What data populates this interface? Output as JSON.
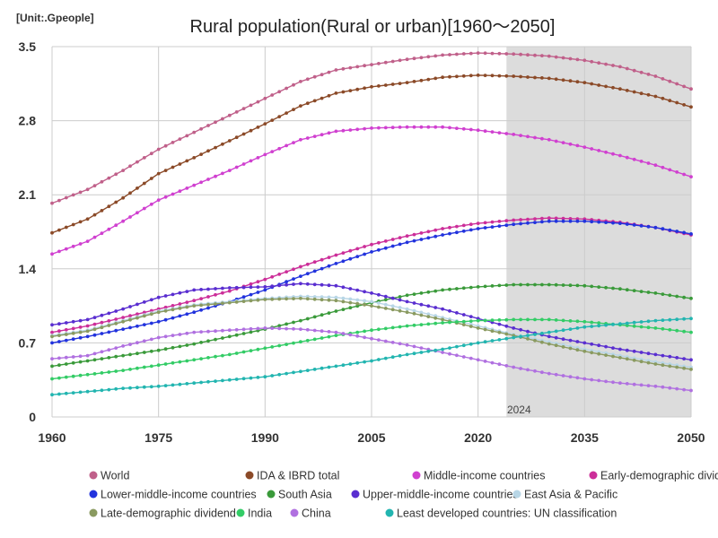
{
  "chart_data": {
    "type": "line",
    "title": "Rural population(Rural or urban)[1960～2050]",
    "unit_label": "[Unit:.Gpeople]",
    "xlabel": "",
    "ylabel": "",
    "xlim": [
      1960,
      2050
    ],
    "ylim": [
      0,
      3.5
    ],
    "x_ticks": [
      1960,
      1975,
      1990,
      2005,
      2020,
      2035,
      2050
    ],
    "y_ticks": [
      0,
      0.7,
      1.4,
      2.1,
      2.8,
      3.5
    ],
    "y_tick_labels": [
      "0",
      "0.7",
      "1.4",
      "2.1",
      "2.8",
      "3.5"
    ],
    "shaded_region": {
      "from": 2024,
      "to": 2050,
      "label": "2024",
      "color": "#dcdcdc"
    },
    "grid": true,
    "legend_position": "bottom",
    "series": [
      {
        "name": "World",
        "color": "#c0608a",
        "points": [
          [
            1960,
            2.02
          ],
          [
            1965,
            2.15
          ],
          [
            1970,
            2.33
          ],
          [
            1975,
            2.53
          ],
          [
            1980,
            2.69
          ],
          [
            1985,
            2.85
          ],
          [
            1990,
            3.01
          ],
          [
            1995,
            3.17
          ],
          [
            2000,
            3.28
          ],
          [
            2005,
            3.33
          ],
          [
            2010,
            3.38
          ],
          [
            2015,
            3.42
          ],
          [
            2020,
            3.44
          ],
          [
            2025,
            3.43
          ],
          [
            2030,
            3.41
          ],
          [
            2035,
            3.37
          ],
          [
            2040,
            3.31
          ],
          [
            2045,
            3.22
          ],
          [
            2050,
            3.1
          ]
        ]
      },
      {
        "name": "IDA & IBRD total",
        "color": "#8b4a28",
        "points": [
          [
            1960,
            1.74
          ],
          [
            1965,
            1.87
          ],
          [
            1970,
            2.07
          ],
          [
            1975,
            2.3
          ],
          [
            1980,
            2.45
          ],
          [
            1985,
            2.61
          ],
          [
            1990,
            2.77
          ],
          [
            1995,
            2.94
          ],
          [
            2000,
            3.06
          ],
          [
            2005,
            3.12
          ],
          [
            2010,
            3.16
          ],
          [
            2015,
            3.21
          ],
          [
            2020,
            3.23
          ],
          [
            2025,
            3.22
          ],
          [
            2030,
            3.2
          ],
          [
            2035,
            3.16
          ],
          [
            2040,
            3.1
          ],
          [
            2045,
            3.03
          ],
          [
            2050,
            2.93
          ]
        ]
      },
      {
        "name": "Middle-income countries",
        "color": "#d040d0",
        "points": [
          [
            1960,
            1.54
          ],
          [
            1965,
            1.66
          ],
          [
            1970,
            1.85
          ],
          [
            1975,
            2.05
          ],
          [
            1980,
            2.19
          ],
          [
            1985,
            2.33
          ],
          [
            1990,
            2.48
          ],
          [
            1995,
            2.62
          ],
          [
            2000,
            2.7
          ],
          [
            2005,
            2.73
          ],
          [
            2010,
            2.74
          ],
          [
            2015,
            2.74
          ],
          [
            2020,
            2.71
          ],
          [
            2025,
            2.67
          ],
          [
            2030,
            2.62
          ],
          [
            2035,
            2.55
          ],
          [
            2040,
            2.47
          ],
          [
            2045,
            2.38
          ],
          [
            2050,
            2.27
          ]
        ]
      },
      {
        "name": "Early-demographic dividend",
        "color": "#cc2e99",
        "points": [
          [
            1960,
            0.8
          ],
          [
            1965,
            0.86
          ],
          [
            1970,
            0.94
          ],
          [
            1975,
            1.02
          ],
          [
            1980,
            1.1
          ],
          [
            1985,
            1.19
          ],
          [
            1990,
            1.3
          ],
          [
            1995,
            1.42
          ],
          [
            2000,
            1.53
          ],
          [
            2005,
            1.63
          ],
          [
            2010,
            1.71
          ],
          [
            2015,
            1.78
          ],
          [
            2020,
            1.83
          ],
          [
            2025,
            1.86
          ],
          [
            2030,
            1.88
          ],
          [
            2035,
            1.87
          ],
          [
            2040,
            1.84
          ],
          [
            2045,
            1.79
          ],
          [
            2050,
            1.72
          ]
        ]
      },
      {
        "name": "Lower-middle-income countries",
        "color": "#2233dd",
        "points": [
          [
            1960,
            0.7
          ],
          [
            1965,
            0.76
          ],
          [
            1970,
            0.83
          ],
          [
            1975,
            0.9
          ],
          [
            1980,
            0.99
          ],
          [
            1985,
            1.09
          ],
          [
            1990,
            1.2
          ],
          [
            1995,
            1.33
          ],
          [
            2000,
            1.45
          ],
          [
            2005,
            1.56
          ],
          [
            2010,
            1.65
          ],
          [
            2015,
            1.72
          ],
          [
            2020,
            1.78
          ],
          [
            2025,
            1.82
          ],
          [
            2030,
            1.85
          ],
          [
            2035,
            1.85
          ],
          [
            2040,
            1.83
          ],
          [
            2045,
            1.79
          ],
          [
            2050,
            1.73
          ]
        ]
      },
      {
        "name": "South Asia",
        "color": "#3a9a3a",
        "points": [
          [
            1960,
            0.48
          ],
          [
            1965,
            0.53
          ],
          [
            1970,
            0.58
          ],
          [
            1975,
            0.63
          ],
          [
            1980,
            0.69
          ],
          [
            1985,
            0.76
          ],
          [
            1990,
            0.83
          ],
          [
            1995,
            0.91
          ],
          [
            2000,
            1.0
          ],
          [
            2005,
            1.08
          ],
          [
            2010,
            1.15
          ],
          [
            2015,
            1.2
          ],
          [
            2020,
            1.23
          ],
          [
            2025,
            1.25
          ],
          [
            2030,
            1.25
          ],
          [
            2035,
            1.24
          ],
          [
            2040,
            1.21
          ],
          [
            2045,
            1.17
          ],
          [
            2050,
            1.12
          ]
        ]
      },
      {
        "name": "Upper-middle-income countries",
        "color": "#5a2ed0",
        "points": [
          [
            1960,
            0.87
          ],
          [
            1965,
            0.92
          ],
          [
            1970,
            1.02
          ],
          [
            1975,
            1.13
          ],
          [
            1980,
            1.2
          ],
          [
            1985,
            1.22
          ],
          [
            1990,
            1.23
          ],
          [
            1995,
            1.26
          ],
          [
            2000,
            1.24
          ],
          [
            2005,
            1.17
          ],
          [
            2010,
            1.09
          ],
          [
            2015,
            1.02
          ],
          [
            2020,
            0.93
          ],
          [
            2025,
            0.84
          ],
          [
            2030,
            0.76
          ],
          [
            2035,
            0.7
          ],
          [
            2040,
            0.64
          ],
          [
            2045,
            0.59
          ],
          [
            2050,
            0.54
          ]
        ]
      },
      {
        "name": "East Asia & Pacific",
        "color": "#b8d6e6",
        "points": [
          [
            1960,
            0.77
          ],
          [
            1965,
            0.82
          ],
          [
            1970,
            0.91
          ],
          [
            1975,
            1.0
          ],
          [
            1980,
            1.06
          ],
          [
            1985,
            1.09
          ],
          [
            1990,
            1.12
          ],
          [
            1995,
            1.14
          ],
          [
            2000,
            1.13
          ],
          [
            2005,
            1.09
          ],
          [
            2010,
            1.02
          ],
          [
            2015,
            0.94
          ],
          [
            2020,
            0.86
          ],
          [
            2025,
            0.78
          ],
          [
            2030,
            0.71
          ],
          [
            2035,
            0.64
          ],
          [
            2040,
            0.58
          ],
          [
            2045,
            0.52
          ],
          [
            2050,
            0.47
          ]
        ]
      },
      {
        "name": "Late-demographic dividend",
        "color": "#8a9a60",
        "points": [
          [
            1960,
            0.76
          ],
          [
            1965,
            0.81
          ],
          [
            1970,
            0.9
          ],
          [
            1975,
            0.99
          ],
          [
            1980,
            1.05
          ],
          [
            1985,
            1.08
          ],
          [
            1990,
            1.11
          ],
          [
            1995,
            1.12
          ],
          [
            2000,
            1.1
          ],
          [
            2005,
            1.05
          ],
          [
            2010,
            0.99
          ],
          [
            2015,
            0.92
          ],
          [
            2020,
            0.84
          ],
          [
            2025,
            0.77
          ],
          [
            2030,
            0.69
          ],
          [
            2035,
            0.62
          ],
          [
            2040,
            0.56
          ],
          [
            2045,
            0.5
          ],
          [
            2050,
            0.45
          ]
        ]
      },
      {
        "name": "India",
        "color": "#33cc66",
        "points": [
          [
            1960,
            0.36
          ],
          [
            1965,
            0.4
          ],
          [
            1970,
            0.44
          ],
          [
            1975,
            0.49
          ],
          [
            1980,
            0.54
          ],
          [
            1985,
            0.59
          ],
          [
            1990,
            0.65
          ],
          [
            1995,
            0.71
          ],
          [
            2000,
            0.77
          ],
          [
            2005,
            0.82
          ],
          [
            2010,
            0.86
          ],
          [
            2015,
            0.89
          ],
          [
            2020,
            0.91
          ],
          [
            2025,
            0.92
          ],
          [
            2030,
            0.92
          ],
          [
            2035,
            0.9
          ],
          [
            2040,
            0.87
          ],
          [
            2045,
            0.84
          ],
          [
            2050,
            0.8
          ]
        ]
      },
      {
        "name": "China",
        "color": "#b070e0",
        "points": [
          [
            1960,
            0.55
          ],
          [
            1965,
            0.58
          ],
          [
            1970,
            0.67
          ],
          [
            1975,
            0.75
          ],
          [
            1980,
            0.8
          ],
          [
            1985,
            0.82
          ],
          [
            1990,
            0.84
          ],
          [
            1995,
            0.83
          ],
          [
            2000,
            0.8
          ],
          [
            2005,
            0.74
          ],
          [
            2010,
            0.68
          ],
          [
            2015,
            0.61
          ],
          [
            2020,
            0.54
          ],
          [
            2025,
            0.47
          ],
          [
            2030,
            0.41
          ],
          [
            2035,
            0.36
          ],
          [
            2040,
            0.32
          ],
          [
            2045,
            0.29
          ],
          [
            2050,
            0.25
          ]
        ]
      },
      {
        "name": "Least developed countries: UN classification",
        "color": "#22b5b0",
        "points": [
          [
            1960,
            0.21
          ],
          [
            1965,
            0.24
          ],
          [
            1970,
            0.27
          ],
          [
            1975,
            0.29
          ],
          [
            1980,
            0.32
          ],
          [
            1985,
            0.35
          ],
          [
            1990,
            0.38
          ],
          [
            1995,
            0.43
          ],
          [
            2000,
            0.48
          ],
          [
            2005,
            0.53
          ],
          [
            2010,
            0.59
          ],
          [
            2015,
            0.64
          ],
          [
            2020,
            0.7
          ],
          [
            2025,
            0.75
          ],
          [
            2030,
            0.8
          ],
          [
            2035,
            0.85
          ],
          [
            2040,
            0.88
          ],
          [
            2045,
            0.91
          ],
          [
            2050,
            0.93
          ]
        ]
      }
    ]
  }
}
